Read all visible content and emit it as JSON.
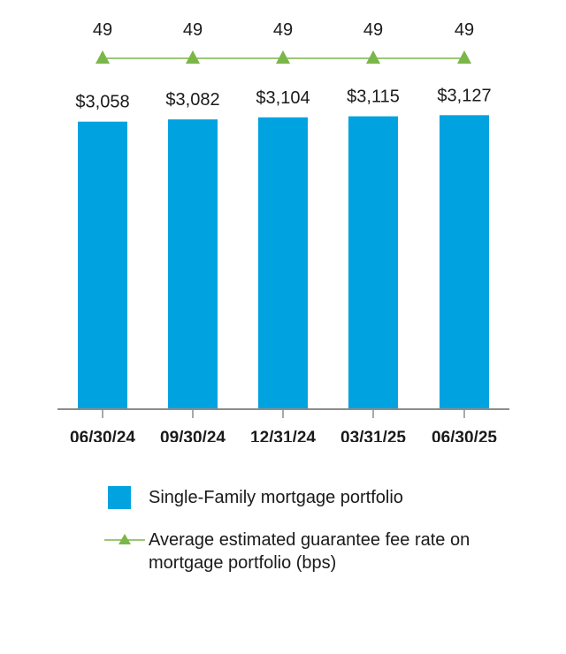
{
  "chart_data": {
    "type": "bar",
    "categories": [
      "06/30/24",
      "09/30/24",
      "12/31/24",
      "03/31/25",
      "06/30/25"
    ],
    "series": [
      {
        "name": "Single-Family mortgage portfolio",
        "type": "bar",
        "values": [
          3058,
          3082,
          3104,
          3115,
          3127
        ],
        "labels": [
          "$3,058",
          "$3,082",
          "$3,104",
          "$3,115",
          "$3,127"
        ],
        "color": "#00a3e0"
      },
      {
        "name": "Average estimated guarantee fee rate on mortgage portfolio (bps)",
        "type": "line",
        "values": [
          49,
          49,
          49,
          49,
          49
        ],
        "labels": [
          "49",
          "49",
          "49",
          "49",
          "49"
        ],
        "color": "#7ab648"
      }
    ],
    "legend": {
      "placement": "bottom",
      "items": [
        {
          "label": "Single-Family mortgage portfolio",
          "marker": "bar"
        },
        {
          "label": "Average estimated guarantee fee rate on mortgage portfolio (bps)",
          "marker": "line-triangle"
        }
      ]
    },
    "grid": false
  }
}
